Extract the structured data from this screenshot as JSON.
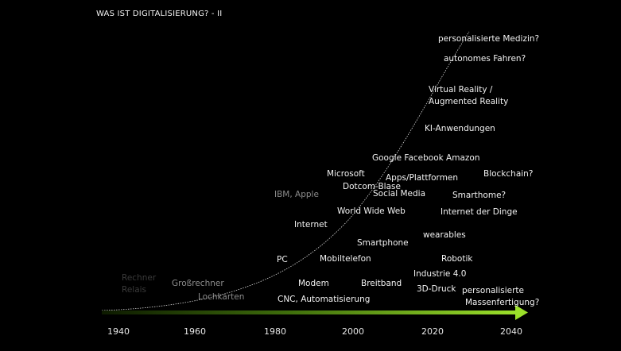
{
  "title": "WAS IST DIGITALISIERUNG? - II",
  "years": [
    "1940",
    "1960",
    "1980",
    "2000",
    "2020",
    "2040"
  ],
  "labels": {
    "rechner": "Rechner",
    "relais": "Relais",
    "grossrechner": "Großrechner",
    "lochkarten": "Lochkarten",
    "ibm_apple": "IBM, Apple",
    "internet": "Internet",
    "pc": "PC",
    "modem": "Modem",
    "cnc": "CNC, Automatisierung",
    "mobiltelefon": "Mobiltelefon",
    "www": "World Wide Web",
    "microsoft": "Microsoft",
    "dotcom": "Dotcom-Blase",
    "smartphone": "Smartphone",
    "breitband": "Breitband",
    "apps": "Apps/Plattformen",
    "social_media": "Social Media",
    "google": "Google Facebook Amazon",
    "ki": "KI-Anwendungen",
    "vr_line1": "Virtual Reality /",
    "vr_line2": "Augmented Reality",
    "autonomes": "autonomes Fahren?",
    "medizin": "personalisierte Medizin?",
    "blockchain": "Blockchain?",
    "smarthome": "Smarthome?",
    "iot": "Internet der Dinge",
    "wearables": "wearables",
    "robotik": "Robotik",
    "industrie": "Industrie 4.0",
    "druck": "3D-Druck",
    "massen_line1": "personalisierte",
    "massen_line2": "Massenfertigung?"
  }
}
